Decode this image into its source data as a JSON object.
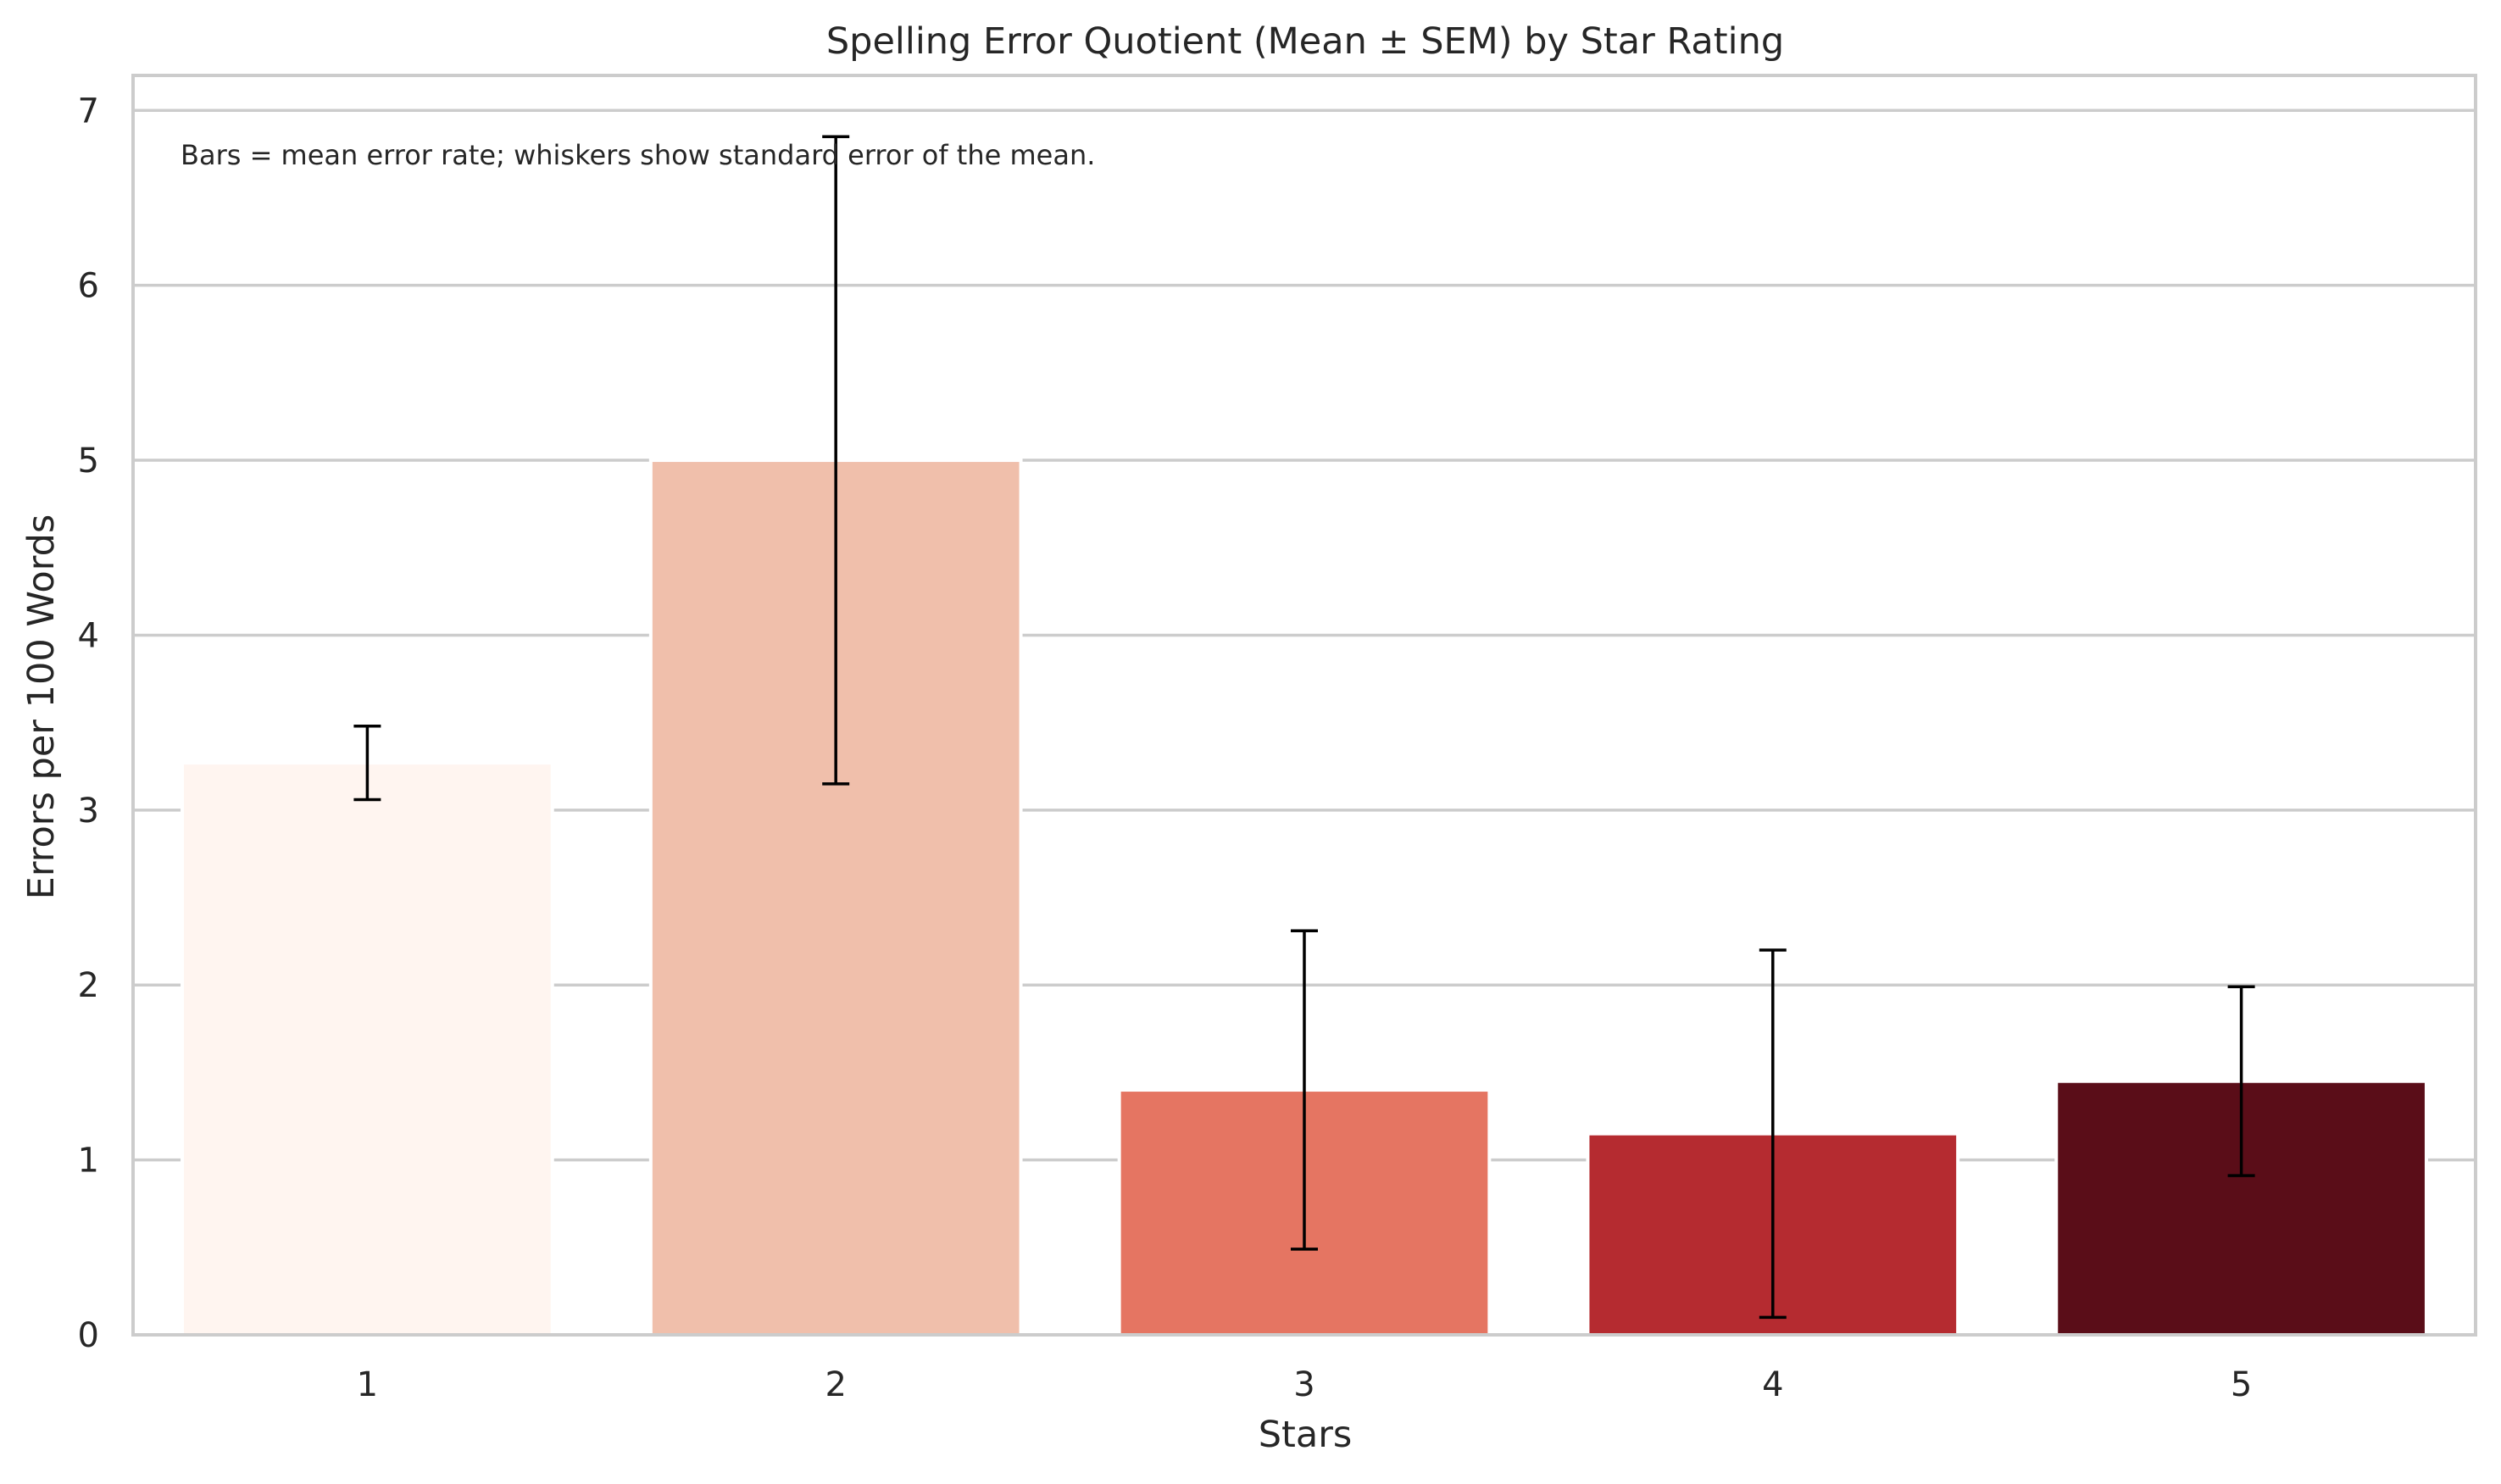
{
  "chart_data": {
    "type": "bar",
    "title": "Spelling Error Quotient (Mean ± SEM) by Star Rating",
    "xlabel": "Stars",
    "ylabel": "Errors per 100 Words",
    "categories": [
      "1",
      "2",
      "3",
      "4",
      "5"
    ],
    "values": [
      3.27,
      5.0,
      1.4,
      1.15,
      1.45
    ],
    "sem": [
      0.21,
      1.85,
      0.91,
      1.05,
      0.54
    ],
    "colors": [
      "#fff5f0",
      "#f0bfab",
      "#e57562",
      "#b52b30",
      "#5a0d18"
    ],
    "ylim": [
      0,
      7.2
    ],
    "yticks": [
      0,
      1,
      2,
      3,
      4,
      5,
      6,
      7
    ],
    "grid": true,
    "annotation": "Bars = mean error rate; whiskers show standard error of the mean."
  }
}
